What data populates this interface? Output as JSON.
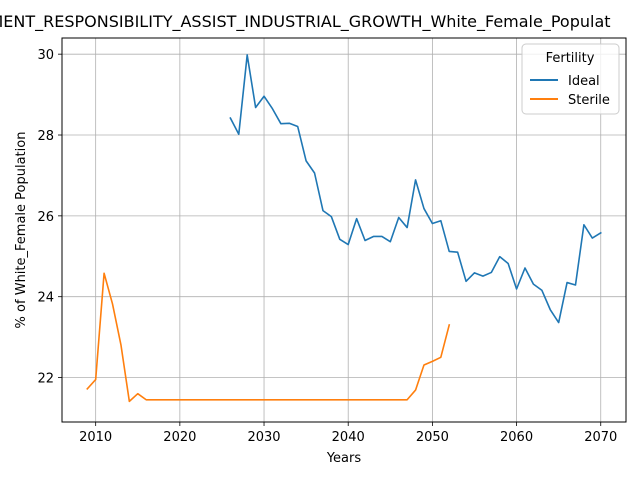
{
  "chart_data": {
    "type": "line",
    "title": "MENT_RESPONSIBILITY_ASSIST_INDUSTRIAL_GROWTH_White_Female_Populat",
    "xlabel": "Years",
    "ylabel": "% of White_Female Population",
    "xlim": [
      2006,
      2073
    ],
    "ylim": [
      20.9,
      30.4
    ],
    "x_ticks": [
      2010,
      2020,
      2030,
      2040,
      2050,
      2060,
      2070
    ],
    "y_ticks": [
      22,
      24,
      26,
      28,
      30
    ],
    "grid": true,
    "legend": {
      "title": "Fertility",
      "placement": "top-right"
    },
    "series": [
      {
        "name": "Ideal",
        "color": "#1f77b4",
        "x": [
          2026,
          2027,
          2028,
          2029,
          2030,
          2031,
          2032,
          2033,
          2034,
          2035,
          2036,
          2037,
          2038,
          2039,
          2040,
          2041,
          2042,
          2043,
          2044,
          2045,
          2046,
          2047,
          2048,
          2049,
          2050,
          2051,
          2052,
          2053,
          2054,
          2055,
          2056,
          2057,
          2058,
          2059,
          2060,
          2061,
          2062,
          2063,
          2064,
          2065,
          2066,
          2067,
          2068,
          2069,
          2070
        ],
        "values": [
          28.42,
          28.02,
          29.98,
          28.68,
          28.96,
          28.65,
          28.28,
          28.29,
          28.21,
          27.36,
          27.06,
          26.13,
          25.98,
          25.42,
          25.29,
          25.93,
          25.39,
          25.49,
          25.49,
          25.36,
          25.96,
          25.71,
          26.89,
          26.18,
          25.81,
          25.88,
          25.12,
          25.1,
          24.38,
          24.59,
          24.51,
          24.6,
          24.99,
          24.82,
          24.19,
          24.71,
          24.31,
          24.16,
          23.68,
          23.36,
          24.35,
          24.29,
          25.78,
          25.45,
          25.58
        ]
      },
      {
        "name": "Sterile",
        "color": "#ff7f0e",
        "x": [
          2009,
          2010,
          2011,
          2012,
          2013,
          2014,
          2015,
          2016,
          2017,
          2018,
          2019,
          2020,
          2021,
          2022,
          2023,
          2024,
          2025,
          2026,
          2027,
          2028,
          2029,
          2030,
          2031,
          2032,
          2033,
          2034,
          2035,
          2036,
          2037,
          2038,
          2039,
          2040,
          2041,
          2042,
          2043,
          2044,
          2045,
          2046,
          2047,
          2048,
          2049,
          2050,
          2051,
          2052
        ],
        "values": [
          21.72,
          21.95,
          24.58,
          23.82,
          22.81,
          21.41,
          21.6,
          21.45,
          21.45,
          21.45,
          21.45,
          21.45,
          21.45,
          21.45,
          21.45,
          21.45,
          21.45,
          21.45,
          21.45,
          21.45,
          21.45,
          21.45,
          21.45,
          21.45,
          21.45,
          21.45,
          21.45,
          21.45,
          21.45,
          21.45,
          21.45,
          21.45,
          21.45,
          21.45,
          21.45,
          21.45,
          21.45,
          21.45,
          21.45,
          21.69,
          22.31,
          22.4,
          22.5,
          23.3
        ]
      }
    ]
  }
}
